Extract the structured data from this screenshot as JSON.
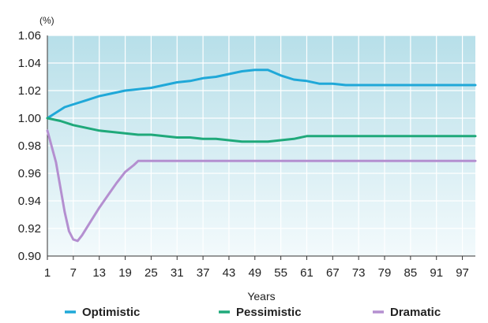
{
  "chart_data": {
    "type": "line",
    "unit_label": "(%)",
    "xlabel": "Years",
    "ylabel": "",
    "ylim": [
      0.9,
      1.06
    ],
    "xlim": [
      1,
      100
    ],
    "x_ticks": [
      1,
      7,
      13,
      19,
      25,
      31,
      37,
      43,
      49,
      55,
      61,
      67,
      73,
      79,
      85,
      91,
      97
    ],
    "y_ticks": [
      0.9,
      0.92,
      0.94,
      0.96,
      0.98,
      1.0,
      1.02,
      1.04,
      1.06
    ],
    "y_tick_labels": [
      "0.90",
      "0.92",
      "0.94",
      "0.96",
      "0.98",
      "1.00",
      "1.02",
      "1.04",
      "1.06"
    ],
    "grid": true,
    "background": {
      "top": "#b7dfe9",
      "bottom": "#f3fafc"
    },
    "legend": {
      "placement": "bottom"
    },
    "series": [
      {
        "name": "Optimistic",
        "color": "#1fa8d8",
        "points": [
          [
            1,
            1.0
          ],
          [
            3,
            1.004
          ],
          [
            5,
            1.008
          ],
          [
            7,
            1.01
          ],
          [
            10,
            1.013
          ],
          [
            13,
            1.016
          ],
          [
            16,
            1.018
          ],
          [
            19,
            1.02
          ],
          [
            22,
            1.021
          ],
          [
            25,
            1.022
          ],
          [
            28,
            1.024
          ],
          [
            31,
            1.026
          ],
          [
            34,
            1.027
          ],
          [
            37,
            1.029
          ],
          [
            40,
            1.03
          ],
          [
            43,
            1.032
          ],
          [
            46,
            1.034
          ],
          [
            49,
            1.035
          ],
          [
            52,
            1.035
          ],
          [
            55,
            1.031
          ],
          [
            58,
            1.028
          ],
          [
            61,
            1.027
          ],
          [
            64,
            1.025
          ],
          [
            67,
            1.025
          ],
          [
            70,
            1.024
          ],
          [
            100,
            1.024
          ]
        ]
      },
      {
        "name": "Pessimistic",
        "color": "#1fa97a",
        "points": [
          [
            1,
            1.0
          ],
          [
            4,
            0.998
          ],
          [
            7,
            0.995
          ],
          [
            10,
            0.993
          ],
          [
            13,
            0.991
          ],
          [
            16,
            0.99
          ],
          [
            19,
            0.989
          ],
          [
            22,
            0.988
          ],
          [
            25,
            0.988
          ],
          [
            28,
            0.987
          ],
          [
            31,
            0.986
          ],
          [
            34,
            0.986
          ],
          [
            37,
            0.985
          ],
          [
            40,
            0.985
          ],
          [
            43,
            0.984
          ],
          [
            46,
            0.983
          ],
          [
            49,
            0.983
          ],
          [
            52,
            0.983
          ],
          [
            55,
            0.984
          ],
          [
            58,
            0.985
          ],
          [
            61,
            0.987
          ],
          [
            64,
            0.987
          ],
          [
            67,
            0.987
          ],
          [
            100,
            0.987
          ]
        ]
      },
      {
        "name": "Dramatic",
        "color": "#b48fd0",
        "points": [
          [
            1,
            0.991
          ],
          [
            3,
            0.968
          ],
          [
            4,
            0.95
          ],
          [
            5,
            0.932
          ],
          [
            6,
            0.918
          ],
          [
            7,
            0.912
          ],
          [
            8,
            0.911
          ],
          [
            9,
            0.915
          ],
          [
            11,
            0.925
          ],
          [
            13,
            0.935
          ],
          [
            15,
            0.944
          ],
          [
            17,
            0.953
          ],
          [
            19,
            0.961
          ],
          [
            21,
            0.966
          ],
          [
            22,
            0.969
          ],
          [
            100,
            0.969
          ]
        ]
      }
    ]
  }
}
